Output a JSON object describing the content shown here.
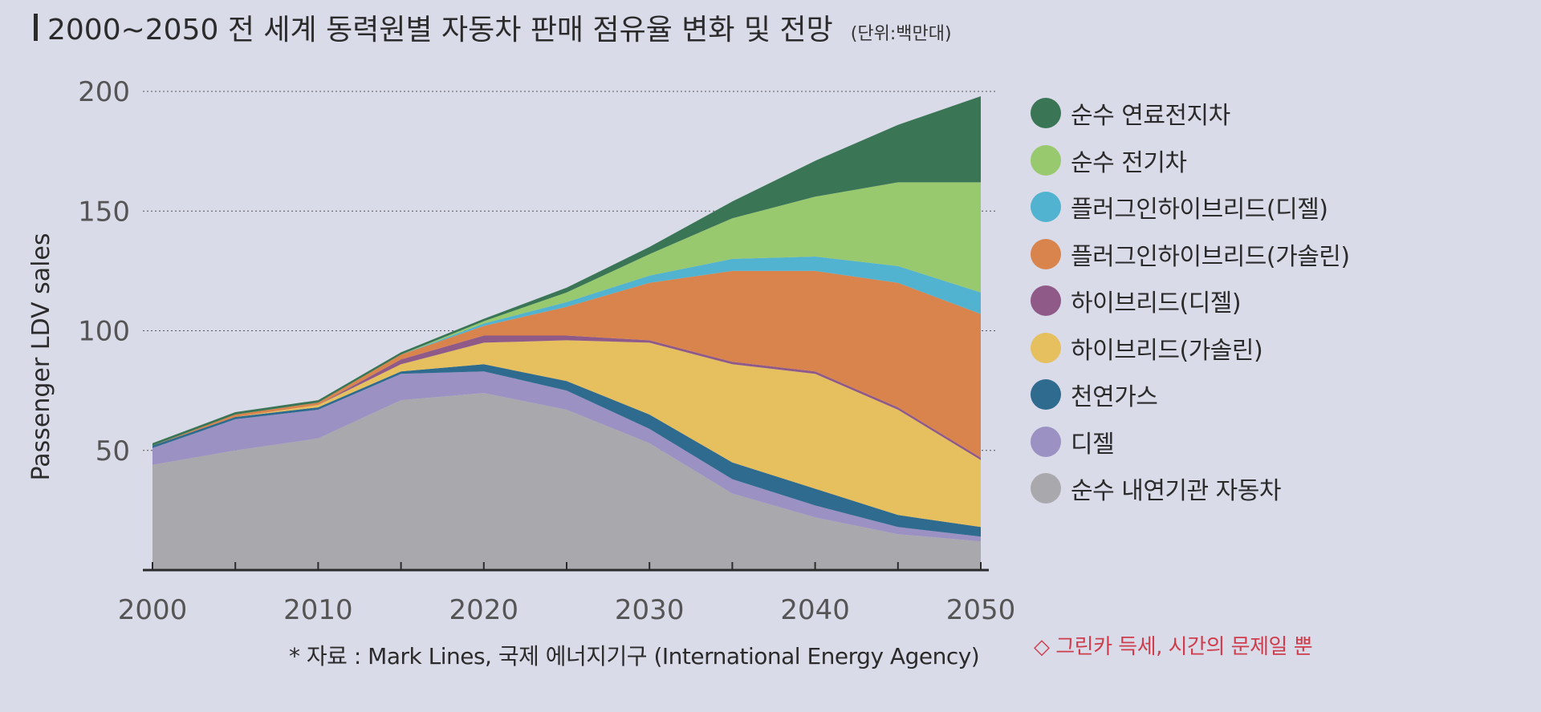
{
  "title": "2000~2050 전 세계 동력원별 자동차 판매 점유율 변화 및 전망",
  "unit": "(단위:백만대)",
  "source": "* 자료 : Mark Lines, 국제 에너지기구 (International Energy Agency)",
  "annotation": "◇ 그린카 득세, 시간의 문제일 뿐",
  "chart_data": {
    "type": "area",
    "stacked": true,
    "title": "2000~2050 전 세계 동력원별 자동차 판매 점유율 변화 및 전망",
    "xlabel": "",
    "ylabel": "Passenger LDV sales",
    "x": [
      2000,
      2005,
      2010,
      2015,
      2020,
      2025,
      2030,
      2035,
      2040,
      2045,
      2050
    ],
    "xticks": [
      2000,
      2010,
      2020,
      2030,
      2040,
      2050
    ],
    "yticks": [
      50,
      100,
      150,
      200
    ],
    "ylim": [
      0,
      200
    ],
    "xlim": [
      2000,
      2050
    ],
    "grid": "horizontal dotted",
    "legend_position": "right",
    "series": [
      {
        "name": "순수 내연기관 자동차",
        "color": "#a9a9ad",
        "values": [
          44,
          50,
          55,
          71,
          74,
          67,
          53,
          32,
          22,
          15,
          12
        ]
      },
      {
        "name": "디젤",
        "color": "#9b91c2",
        "values": [
          7,
          13,
          12,
          11,
          9,
          8,
          6,
          6,
          5,
          3,
          2
        ]
      },
      {
        "name": "천연가스",
        "color": "#2f6a8f",
        "values": [
          1,
          1,
          1,
          1,
          3,
          4,
          6,
          7,
          7,
          5,
          4
        ]
      },
      {
        "name": "하이브리드(가솔린)",
        "color": "#e6bf5e",
        "values": [
          0,
          0,
          1,
          3,
          9,
          17,
          30,
          41,
          48,
          44,
          28
        ]
      },
      {
        "name": "하이브리드(디젤)",
        "color": "#8f5a88",
        "values": [
          0,
          0,
          0,
          2,
          3,
          2,
          1,
          1,
          1,
          1,
          1
        ]
      },
      {
        "name": "플러그인하이브리드(가솔린)",
        "color": "#d9844d",
        "values": [
          0,
          1,
          1,
          2,
          4,
          12,
          24,
          38,
          42,
          52,
          60
        ]
      },
      {
        "name": "플러그인하이브리드(디젤)",
        "color": "#52b3d0",
        "values": [
          0,
          0,
          0,
          0,
          1,
          2,
          3,
          5,
          6,
          7,
          9
        ]
      },
      {
        "name": "순수 전기차",
        "color": "#98c96e",
        "values": [
          0,
          0,
          0,
          0,
          1,
          4,
          9,
          17,
          25,
          35,
          46
        ]
      },
      {
        "name": "순수 연료전지차",
        "color": "#3a7656",
        "values": [
          1,
          1,
          1,
          1,
          1,
          2,
          3,
          7,
          15,
          24,
          36
        ]
      }
    ]
  }
}
